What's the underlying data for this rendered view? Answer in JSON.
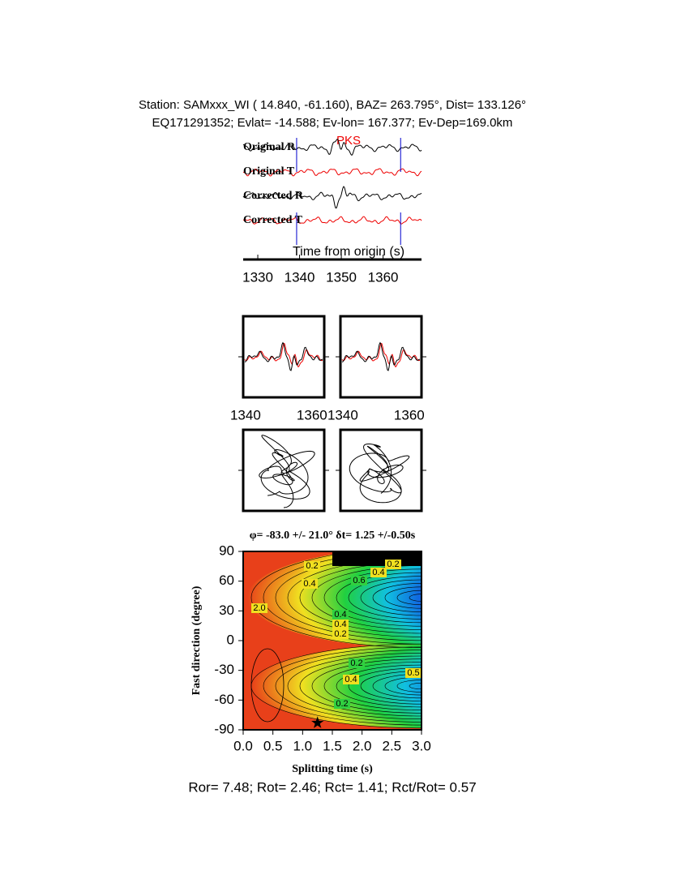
{
  "header": {
    "line1": "Station: SAMxxx_WI (  14.840,  -61.160), BAZ=  263.795°, Dist=  133.126°",
    "line2": "EQ171291352; Evlat= -14.588; Ev-lon= 167.377; Ev-Dep=169.0km"
  },
  "traces": {
    "labels": [
      "Original R",
      "Original T",
      "Corrected R",
      "Corrected T"
    ],
    "phase": "PKS",
    "xlabel": "Time from origin (s)",
    "xlim": [
      1326.5,
      1369.2
    ],
    "xticks": [
      1330,
      1340,
      1350,
      1360
    ],
    "window": [
      1339.3,
      1364.2
    ]
  },
  "waveforms": {
    "xlim": [
      1339.3,
      1363.7
    ],
    "xticks": [
      1340,
      1360
    ]
  },
  "grid": {
    "title": "φ= -83.0 +/- 21.0° δt= 1.25 +/-0.50s",
    "xlabel": "Splitting time (s)",
    "ylabel": "Fast direction (degree)",
    "xlim": [
      0,
      3
    ],
    "ylim": [
      -90,
      90
    ],
    "xticks": [
      {
        "value": 0,
        "label": "0.0"
      },
      0.5,
      {
        "value": 1,
        "label": "1.0"
      },
      1.5,
      {
        "value": 2,
        "label": "2.0"
      },
      2.5,
      {
        "value": 3,
        "label": "3.0"
      }
    ],
    "yticks": [
      -90,
      -60,
      -30,
      0,
      30,
      60,
      90
    ],
    "best": {
      "dt": 1.25,
      "phi": -83.0
    },
    "contour_labels": [
      "0.2",
      "0.4",
      "0.6",
      "0.4",
      "0.2",
      "0.4",
      "0.4",
      "0.2",
      "0.2",
      "0.4",
      "0.5",
      "0.2",
      "2.0"
    ]
  },
  "footer": "Ror= 7.48; Rot= 2.46; Rct= 1.41; Rct/Rot= 0.57"
}
